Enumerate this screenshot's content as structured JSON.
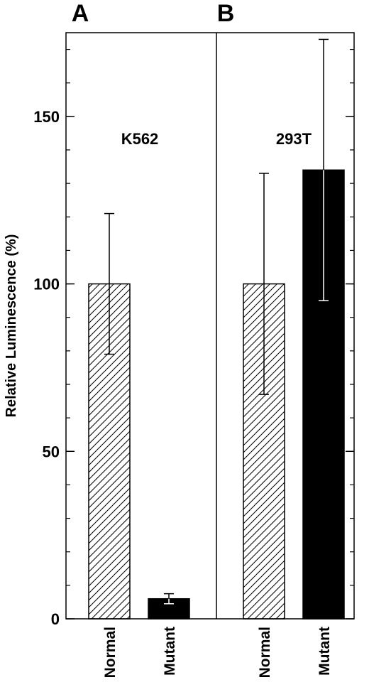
{
  "chart_data": {
    "type": "bar",
    "ylabel": "Relative Luminescence (%)",
    "ylim": [
      0,
      175
    ],
    "yticks": [
      0,
      50,
      100,
      150
    ],
    "minor_tick_step": 10,
    "panels": [
      {
        "letter": "A",
        "cell_line": "K562",
        "bars": [
          {
            "category": "Normal",
            "value": 100,
            "error": 21,
            "fill": "hatched"
          },
          {
            "category": "Mutant",
            "value": 6,
            "error": 1.5,
            "fill": "solid"
          }
        ]
      },
      {
        "letter": "B",
        "cell_line": "293T",
        "bars": [
          {
            "category": "Normal",
            "value": 100,
            "error": 33,
            "fill": "hatched"
          },
          {
            "category": "Mutant",
            "value": 134,
            "error": 39,
            "fill": "solid"
          }
        ]
      }
    ],
    "colors": {
      "solid": "#000000",
      "hatch": "#000000",
      "background": "#ffffff"
    }
  }
}
